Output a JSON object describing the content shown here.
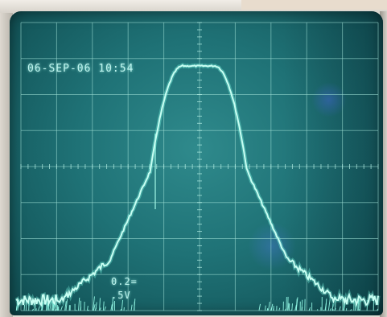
{
  "display": {
    "timestamp": "06-SEP-06 10:54",
    "channel_readout_1": "0.2=",
    "channel_readout_2": ".5V"
  },
  "colors": {
    "phosphor_trace": "#8ff5e2",
    "graticule": "#9fe0d6",
    "screen_background": "#1f7276"
  }
}
